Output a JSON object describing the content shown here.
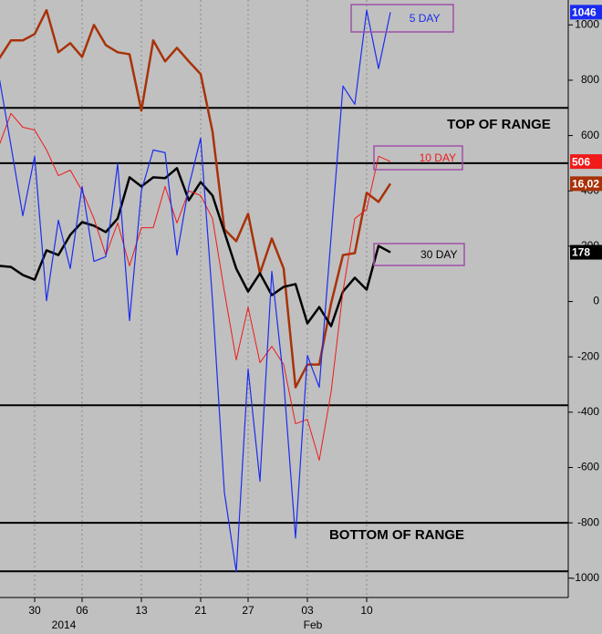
{
  "chart_data": {
    "type": "line",
    "categories": [
      null,
      null,
      null,
      "30",
      null,
      null,
      null,
      "06",
      null,
      null,
      null,
      null,
      "13",
      null,
      null,
      null,
      null,
      "21",
      null,
      null,
      null,
      "27",
      null,
      null,
      null,
      null,
      "03",
      null,
      null,
      null,
      null,
      "10",
      null,
      null
    ],
    "categories_row2": [
      null,
      null,
      null,
      null,
      null,
      "2014",
      null,
      null,
      null,
      null,
      null,
      null,
      null,
      null,
      null,
      null,
      null,
      null,
      null,
      null,
      null,
      null,
      null,
      null,
      null,
      null,
      "Feb",
      null,
      null,
      null,
      null,
      null,
      null,
      null
    ],
    "series": [
      {
        "name": "5 DAY",
        "color": "#1a2cf0",
        "tag": "1046",
        "values": [
          812,
          564,
          310,
          525,
          3,
          294,
          119,
          416,
          145,
          162,
          498,
          -69,
          400,
          548,
          538,
          168,
          416,
          591,
          3,
          -690,
          -977,
          -244,
          -650,
          109,
          -287,
          -855,
          -195,
          -310,
          234,
          779,
          713,
          1053,
          842,
          1046
        ]
      },
      {
        "name": "10 DAY",
        "color": "#f01a1a",
        "tag": "506",
        "values": [
          564,
          680,
          630,
          620,
          548,
          455,
          475,
          400,
          300,
          168,
          284,
          129,
          267,
          267,
          416,
          284,
          400,
          383,
          300,
          36,
          -211,
          -20,
          -221,
          -162,
          -228,
          -442,
          -426,
          -574,
          -327,
          36,
          300,
          333,
          525,
          506
        ]
      },
      {
        "name": "30 DAY",
        "color": "#000000",
        "tag": "178",
        "values": [
          129,
          125,
          96,
          79,
          185,
          168,
          241,
          287,
          274,
          251,
          300,
          449,
          416,
          449,
          446,
          482,
          366,
          432,
          383,
          251,
          119,
          36,
          102,
          23,
          53,
          63,
          -79,
          -20,
          -89,
          36,
          86,
          43,
          201,
          178
        ]
      },
      {
        "color": "#a83208",
        "tag": "16,02",
        "values": [
          878,
          944,
          944,
          967,
          1053,
          901,
          934,
          884,
          1000,
          927,
          901,
          894,
          690,
          944,
          868,
          917,
          868,
          822,
          614,
          261,
          218,
          317,
          102,
          228,
          119,
          -310,
          -228,
          -228,
          -7,
          168,
          175,
          393,
          360,
          426
        ]
      }
    ],
    "ylim": [
      -1070,
      1090
    ],
    "yticks": [
      -1000,
      -800,
      -600,
      -400,
      -200,
      0,
      200,
      400,
      600,
      800,
      1000
    ],
    "reference_lines": [
      700,
      500,
      -375,
      -800,
      -975
    ],
    "annotations": [
      "TOP OF RANGE",
      "BOTTOM OF RANGE"
    ]
  }
}
